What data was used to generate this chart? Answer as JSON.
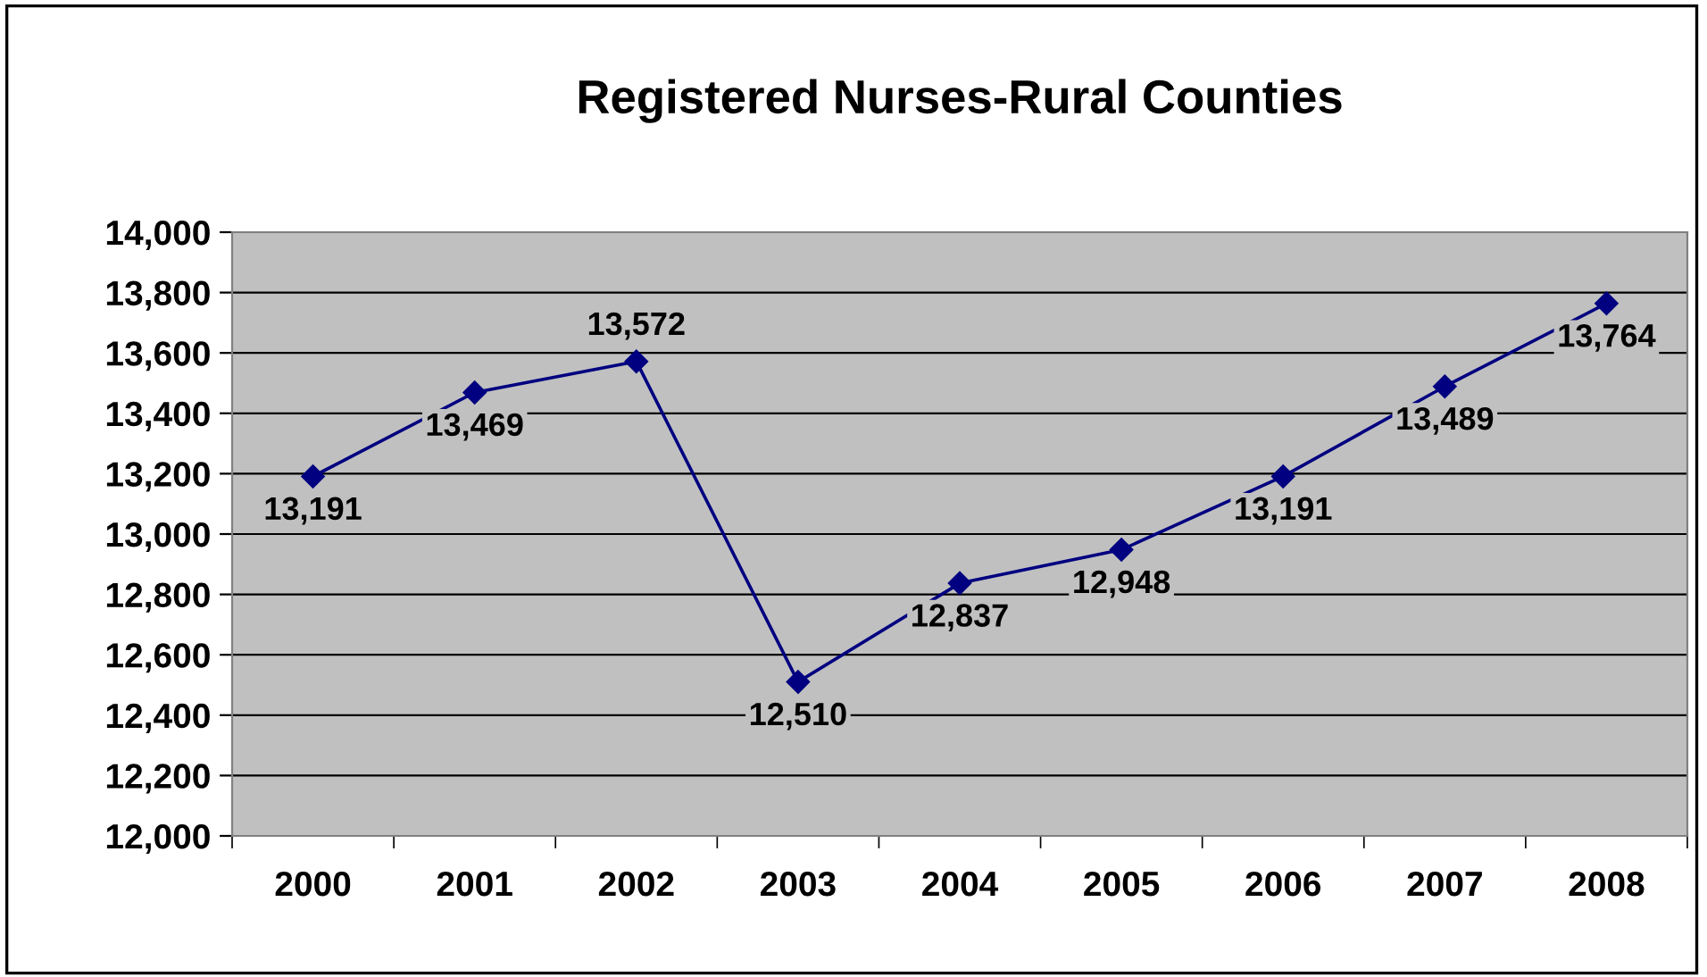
{
  "chart_data": {
    "type": "line",
    "title": "Registered Nurses-Rural Counties",
    "categories": [
      "2000",
      "2001",
      "2002",
      "2003",
      "2004",
      "2005",
      "2006",
      "2007",
      "2008"
    ],
    "series": [
      {
        "color": "#000080",
        "values": [
          13191,
          13469,
          13572,
          12510,
          12837,
          12948,
          13191,
          13489,
          13764
        ],
        "value_labels": [
          "13,191",
          "13,469",
          "13,572",
          "12,510",
          "12,837",
          "12,948",
          "13,191",
          "13,489",
          "13,764"
        ]
      }
    ],
    "ylim": [
      12000,
      14000
    ],
    "yticks": [
      {
        "value": 12000,
        "label": "12,000"
      },
      {
        "value": 12200,
        "label": "12,200"
      },
      {
        "value": 12400,
        "label": "12,400"
      },
      {
        "value": 12600,
        "label": "12,600"
      },
      {
        "value": 12800,
        "label": "12,800"
      },
      {
        "value": 13000,
        "label": "13,000"
      },
      {
        "value": 13200,
        "label": "13,200"
      },
      {
        "value": 13400,
        "label": "13,400"
      },
      {
        "value": 13600,
        "label": "13,600"
      },
      {
        "value": 13800,
        "label": "13,800"
      },
      {
        "value": 14000,
        "label": "14,000"
      }
    ],
    "grid": "y",
    "legend": false,
    "marker": "diamond",
    "line_style": "solid"
  }
}
